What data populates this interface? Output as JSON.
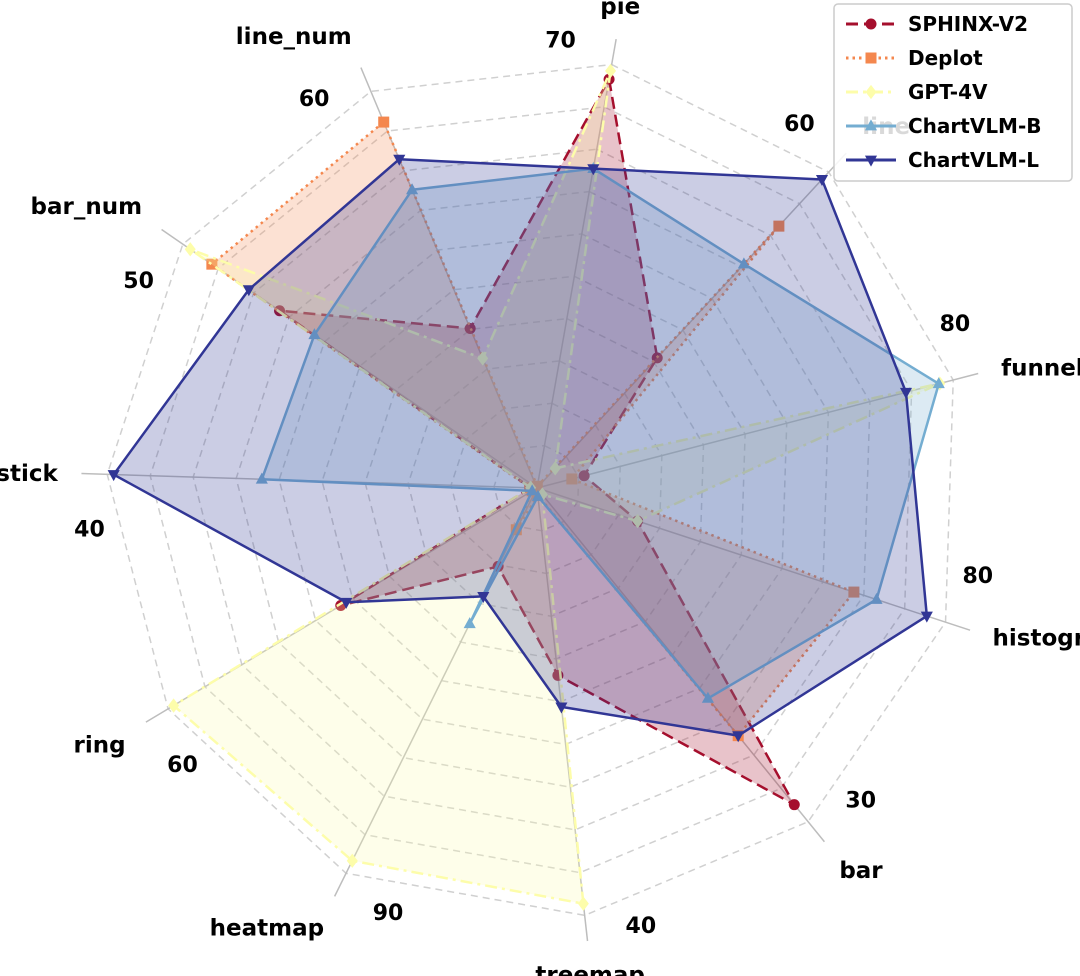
{
  "chart_data": {
    "type": "radar",
    "axes": [
      "pie",
      "line",
      "funnel",
      "histogram",
      "bar",
      "treemap",
      "heatmap",
      "ring",
      "candlestick",
      "bar_num",
      "line_num"
    ],
    "axis_max_labels": [
      "70",
      "60",
      "80",
      "80",
      "30",
      "40",
      "90",
      "60",
      "40",
      "50",
      "60"
    ],
    "axis_max": [
      70,
      60,
      80,
      80,
      30,
      40,
      90,
      60,
      40,
      50,
      60
    ],
    "grid": true,
    "legend_position": "top-right",
    "series": [
      {
        "name": "SPHINX-V2",
        "color": "#a50f2d",
        "line_style": "dashed",
        "marker": "circle",
        "values": [
          68.6,
          25.1,
          9.2,
          20.0,
          28.9,
          17.8,
          18.6,
          32.4,
          0.6,
          36.9,
          24.5
        ]
      },
      {
        "name": "Deplot",
        "color": "#f4874e",
        "line_style": "dotted",
        "marker": "square",
        "values": [
          0.3,
          50.5,
          6.8,
          63.0,
          22.6,
          0.7,
          9.9,
          0.8,
          0.7,
          46.6,
          56.2
        ]
      },
      {
        "name": "GPT-4V",
        "color": "#fdfdaa",
        "line_style": "dashdot",
        "marker": "diamond",
        "values": [
          70.0,
          3.8,
          78.6,
          20.0,
          0.6,
          39.5,
          88.4,
          60.0,
          0.6,
          49.7,
          19.9
        ]
      },
      {
        "name": "ChartVLM-B",
        "color": "#74add1",
        "line_style": "solid",
        "marker": "triangle-up",
        "values": [
          53.6,
          43.2,
          78.4,
          67.5,
          19.2,
          0.8,
          32.2,
          0.8,
          26.0,
          31.9,
          45.8
        ]
      },
      {
        "name": "ChartVLM-L",
        "color": "#313695",
        "line_style": "solid",
        "marker": "triangle-down",
        "values": [
          53.6,
          59.5,
          72.0,
          77.5,
          22.6,
          20.8,
          25.7,
          31.5,
          40.0,
          41.3,
          50.5
        ]
      }
    ]
  }
}
